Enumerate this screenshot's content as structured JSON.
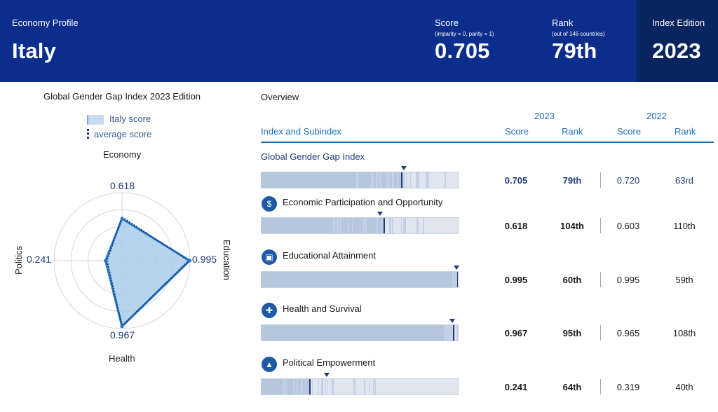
{
  "header": {
    "profile_label": "Economy Profile",
    "country": "Italy",
    "score_label": "Score",
    "score_note": "(imparity = 0, parity = 1)",
    "score_value": "0.705",
    "rank_label": "Rank",
    "rank_note": "(out of 146 countries)",
    "rank_value": "79th",
    "edition_label": "Index Edition",
    "edition_value": "2023",
    "colors": {
      "bar": "#0b2d8c",
      "edition_box": "#08255f"
    }
  },
  "radar": {
    "title_main": "Global Gender Gap Index",
    "title_edition": "2023 Edition",
    "legend_country": "Italy score",
    "legend_average": "average score",
    "axes": [
      {
        "name": "Economy",
        "value": 0.618,
        "value_label": "0.618",
        "average": 0.64
      },
      {
        "name": "Education",
        "value": 0.995,
        "value_label": "0.995",
        "average": 0.98
      },
      {
        "name": "Health",
        "value": 0.967,
        "value_label": "0.967",
        "average": 0.96
      },
      {
        "name": "Politics",
        "value": 0.241,
        "value_label": "0.241",
        "average": 0.22
      }
    ],
    "colors": {
      "fill": "#a9cdea",
      "stroke": "#1f78c8",
      "average": "#1f3d7a",
      "grid": "#d7d7d7"
    }
  },
  "table": {
    "overview_label": "Overview",
    "year_current": "2023",
    "year_previous": "2022",
    "col_index": "Index and Subindex",
    "col_score": "Score",
    "col_rank": "Rank",
    "col_score_prev": "Score",
    "col_rank_prev": "Rank",
    "rows": [
      {
        "title": "Global Gender Gap Index",
        "icon": "globe-icon",
        "value": 0.705,
        "average_pos": 0.72,
        "score": "0.705",
        "rank": "79th",
        "score_prev": "0.720",
        "rank_prev": "63rd"
      },
      {
        "title": "Economic Participation and Opportunity",
        "icon": "economy-icon",
        "value": 0.618,
        "average_pos": 0.6,
        "score": "0.618",
        "rank": "104th",
        "score_prev": "0.603",
        "rank_prev": "110th"
      },
      {
        "title": "Educational Attainment",
        "icon": "book-icon",
        "value": 0.995,
        "average_pos": 0.995,
        "score": "0.995",
        "rank": "60th",
        "score_prev": "0.995",
        "rank_prev": "59th"
      },
      {
        "title": "Health and Survival",
        "icon": "health-cross-icon",
        "value": 0.967,
        "average_pos": 0.965,
        "score": "0.967",
        "rank": "95th",
        "score_prev": "0.965",
        "rank_prev": "108th"
      },
      {
        "title": "Political Empowerment",
        "icon": "government-building-icon",
        "value": 0.241,
        "average_pos": 0.33,
        "score": "0.241",
        "rank": "64th",
        "score_prev": "0.319",
        "rank_prev": "40th"
      }
    ]
  }
}
